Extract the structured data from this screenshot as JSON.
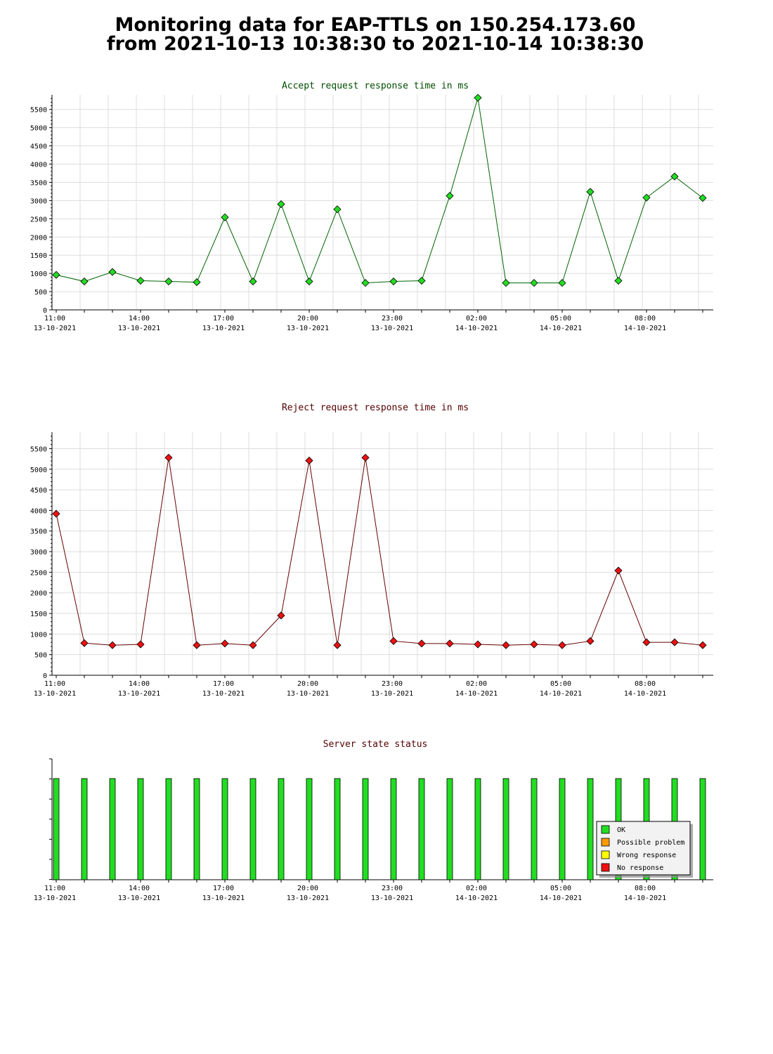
{
  "header": {
    "title_line1": "Monitoring data for EAP-TTLS on 150.254.173.60",
    "title_line2": "from 2021-10-13 10:38:30 to 2021-10-14 10:38:30"
  },
  "x_axis": {
    "tick_times": [
      "11:00",
      "14:00",
      "17:00",
      "20:00",
      "23:00",
      "02:00",
      "05:00",
      "08:00"
    ],
    "tick_dates": [
      "13-10-2021",
      "13-10-2021",
      "13-10-2021",
      "13-10-2021",
      "13-10-2021",
      "14-10-2021",
      "14-10-2021",
      "14-10-2021"
    ],
    "start": "2021-10-13 10:38:30",
    "end": "2021-10-14 10:38:30"
  },
  "colors": {
    "accept_line": "#006400",
    "accept_marker": "#22dd22",
    "reject_line": "#660000",
    "reject_marker": "#ee1111",
    "accept_title": "#004d00",
    "reject_title": "#550000",
    "status_title": "#550000",
    "ok": "#22dd22",
    "possible_problem": "#ff9900",
    "wrong_response": "#ffff00",
    "no_response": "#ee1111",
    "grid": "#dddddd"
  },
  "chart_data": [
    {
      "type": "line",
      "title": "Accept request response time in ms",
      "x": [
        "11:00",
        "12:00",
        "13:00",
        "14:00",
        "15:00",
        "16:00",
        "17:00",
        "18:00",
        "19:00",
        "20:00",
        "21:00",
        "22:00",
        "23:00",
        "00:00",
        "01:00",
        "02:00",
        "03:00",
        "04:00",
        "05:00",
        "06:00",
        "07:00",
        "08:00",
        "09:00",
        "10:00"
      ],
      "values": [
        960,
        780,
        1040,
        800,
        780,
        760,
        2540,
        780,
        2900,
        780,
        2760,
        740,
        780,
        800,
        3130,
        5820,
        740,
        740,
        740,
        3240,
        800,
        3080,
        3660,
        3070
      ],
      "ylim": [
        0,
        5900
      ],
      "yticks": [
        0,
        500,
        1000,
        1500,
        2000,
        2500,
        3000,
        3500,
        4000,
        4500,
        5000,
        5500
      ],
      "grid": true
    },
    {
      "type": "line",
      "title": "Reject request response time in ms",
      "x": [
        "11:00",
        "12:00",
        "13:00",
        "14:00",
        "15:00",
        "16:00",
        "17:00",
        "18:00",
        "19:00",
        "20:00",
        "21:00",
        "22:00",
        "23:00",
        "00:00",
        "01:00",
        "02:00",
        "03:00",
        "04:00",
        "05:00",
        "06:00",
        "07:00",
        "08:00",
        "09:00",
        "10:00"
      ],
      "values": [
        3920,
        780,
        730,
        750,
        5280,
        730,
        770,
        730,
        1450,
        5210,
        730,
        5280,
        830,
        770,
        770,
        750,
        730,
        750,
        730,
        830,
        2540,
        800,
        800,
        730
      ],
      "ylim": [
        0,
        5900
      ],
      "yticks": [
        0,
        500,
        1000,
        1500,
        2000,
        2500,
        3000,
        3500,
        4000,
        4500,
        5000,
        5500
      ],
      "grid": true
    },
    {
      "type": "bar",
      "title": "Server state status",
      "x": [
        "11:00",
        "12:00",
        "13:00",
        "14:00",
        "15:00",
        "16:00",
        "17:00",
        "18:00",
        "19:00",
        "20:00",
        "21:00",
        "22:00",
        "23:00",
        "00:00",
        "01:00",
        "02:00",
        "03:00",
        "04:00",
        "05:00",
        "06:00",
        "07:00",
        "08:00",
        "09:00",
        "10:00"
      ],
      "values": [
        1,
        1,
        1,
        1,
        1,
        1,
        1,
        1,
        1,
        1,
        1,
        1,
        1,
        1,
        1,
        1,
        1,
        1,
        1,
        1,
        1,
        1,
        1,
        1
      ],
      "status": [
        "OK",
        "OK",
        "OK",
        "OK",
        "OK",
        "OK",
        "OK",
        "OK",
        "OK",
        "OK",
        "OK",
        "OK",
        "OK",
        "OK",
        "OK",
        "OK",
        "OK",
        "OK",
        "OK",
        "OK",
        "OK",
        "OK",
        "OK",
        "OK"
      ],
      "legend": [
        "OK",
        "Possible problem",
        "Wrong response",
        "No response"
      ],
      "legend_position": "bottom-right",
      "grid": false
    }
  ]
}
